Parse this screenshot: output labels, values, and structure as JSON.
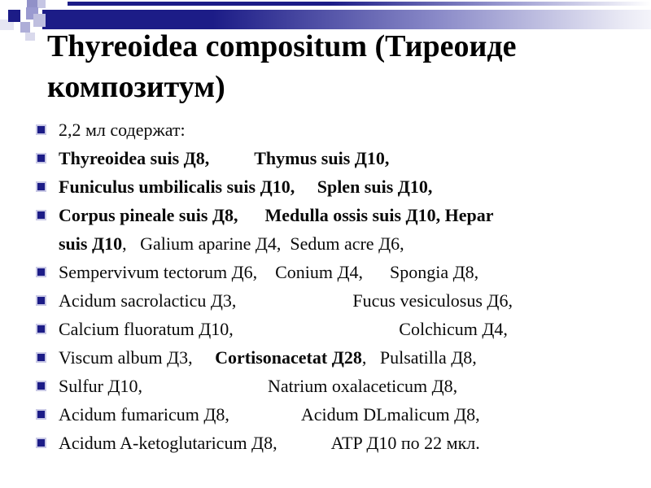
{
  "slide": {
    "title": "Thyreoidea compositum (Тиреоиде\nкомпозитум)",
    "accent_colors": {
      "navy": "#1c1c87",
      "purple_mid": "#9a9ad0",
      "purple_light": "#c6c6e4",
      "purple_pale": "#e6e6f3",
      "bullet_square": "#1c1c87",
      "text": "#000000"
    },
    "bullets": [
      {
        "segments": [
          {
            "text": "2,2 мл содержат:",
            "bold": false
          }
        ]
      },
      {
        "segments": [
          {
            "text": "Thyreoidea suis Д8,          Thymus suis Д10,",
            "bold": true
          }
        ]
      },
      {
        "segments": [
          {
            "text": "Funiculus umbilicalis suis Д10,     Splen suis Д10,",
            "bold": true
          }
        ]
      },
      {
        "segments": [
          {
            "text": "Corpus pineale suis Д8,      Medulla ossis suis Д10, Hepar\nsuis Д10",
            "bold": true
          },
          {
            "text": ",   Galium aparine Д4,  Sedum acre Д6,",
            "bold": false
          }
        ]
      },
      {
        "segments": [
          {
            "text": "Sempervivum tectorum Д6,    Conium Д4,      Spongia Д8,",
            "bold": false
          }
        ]
      },
      {
        "segments": [
          {
            "text": "Acidum sacrolacticu Д3,                          Fucus vesiculosus Д6,",
            "bold": false
          }
        ]
      },
      {
        "segments": [
          {
            "text": "Calcium fluoratum Д10,                                     Colchicum Д4,",
            "bold": false
          }
        ]
      },
      {
        "segments": [
          {
            "text": "Viscum album Д3,     ",
            "bold": false
          },
          {
            "text": "Cortisonacetat Д28",
            "bold": true
          },
          {
            "text": ",   Pulsatilla Д8,",
            "bold": false
          }
        ]
      },
      {
        "segments": [
          {
            "text": "Sulfur Д10,                            Natrium oxalaceticum Д8,",
            "bold": false
          }
        ]
      },
      {
        "segments": [
          {
            "text": "Acidum fumaricum Д8,                Acidum DLmalicum Д8,",
            "bold": false
          }
        ]
      },
      {
        "segments": [
          {
            "text": "Acidum A-ketoglutaricum Д8,            ATP Д10 по 22 мкл.",
            "bold": false
          }
        ]
      }
    ]
  }
}
